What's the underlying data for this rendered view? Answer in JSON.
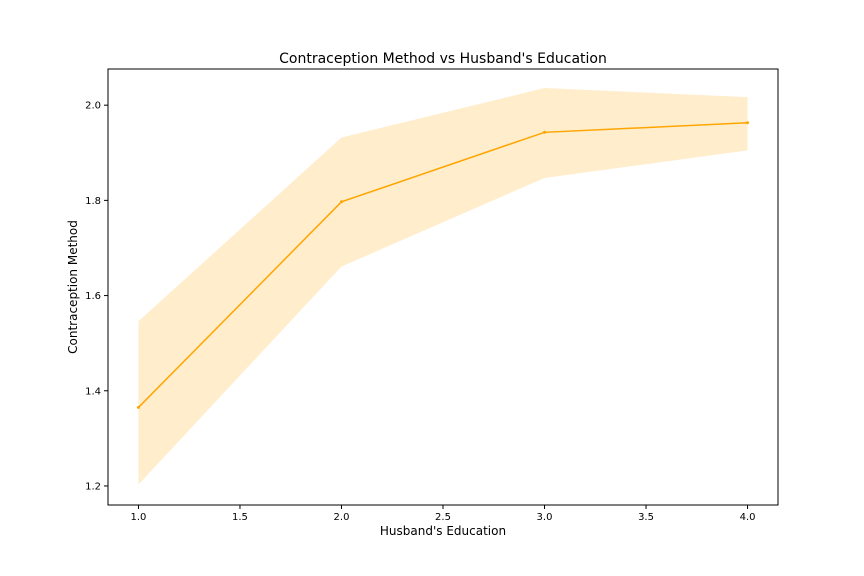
{
  "chart_data": {
    "type": "line",
    "title": "Contraception Method vs Husband's Education",
    "xlabel": "Husband's Education",
    "ylabel": "Contraception Method",
    "x": [
      1.0,
      2.0,
      3.0,
      4.0
    ],
    "series": [
      {
        "values": [
          1.365,
          1.797,
          1.943,
          1.963
        ],
        "ci_lower": [
          1.203,
          1.661,
          1.847,
          1.905
        ],
        "ci_upper": [
          1.546,
          1.932,
          2.036,
          2.017
        ],
        "color": "#ffa500"
      }
    ],
    "xlim": [
      0.85,
      4.15
    ],
    "ylim": [
      1.16,
      2.076
    ],
    "xticks": [
      "1.0",
      "1.5",
      "2.0",
      "2.5",
      "3.0",
      "3.5",
      "4.0"
    ],
    "yticks": [
      "1.2",
      "1.4",
      "1.6",
      "1.8",
      "2.0"
    ],
    "grid": false,
    "band_color": "#ffa500"
  }
}
